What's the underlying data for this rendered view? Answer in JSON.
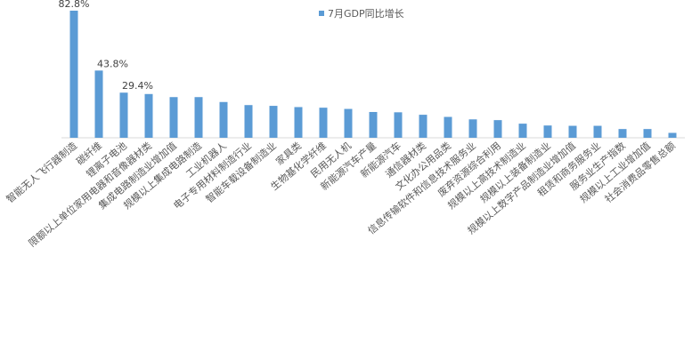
{
  "chart_data": {
    "type": "bar",
    "categories": [
      "智能无人飞行器制造",
      "碳纤维",
      "锂离子电池",
      "限额以上单位家用电器和音像器材类",
      "集成电路制造业增加值",
      "规模以上集成电路制造",
      "工业机器人",
      "电子专用材料制造行业",
      "智能车载设备制造业",
      "家具类",
      "生物基化学纤维",
      "民用无人机",
      "新能源汽车产量",
      "新能源汽车",
      "通信器材类",
      "文化办公用品类",
      "信息传输软件和信息技术服务业",
      "废弃资源综合利用",
      "规模以上高技术制造业",
      "规模以上装备制造业",
      "规模以上数字产品制造业增加值",
      "租赁和商务服务业",
      "服务业生产指数",
      "规模以上工业增加值",
      "社会消费品零售总额"
    ],
    "series": [
      {
        "name": "7月GDP同比增长",
        "values": [
          82.8,
          43.8,
          29.4,
          28.5,
          26.5,
          26.5,
          23.3,
          21.3,
          20.8,
          20.0,
          19.6,
          18.8,
          16.8,
          16.6,
          15.0,
          13.6,
          12.0,
          11.5,
          9.2,
          8.0,
          7.8,
          7.8,
          5.7,
          5.7,
          3.2
        ]
      }
    ],
    "data_labels": [
      "82.8%",
      "43.8%",
      "29.4%"
    ],
    "legend": "top-center",
    "color": "#5b9bd5"
  }
}
